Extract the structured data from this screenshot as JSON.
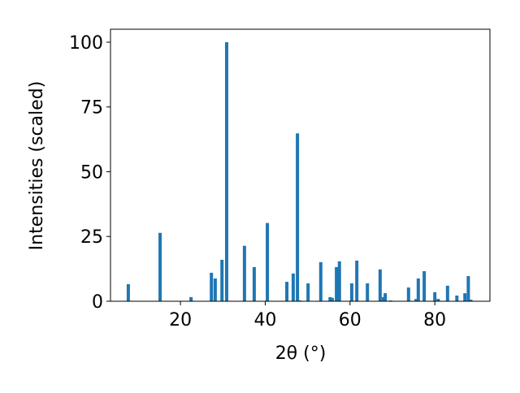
{
  "chart_data": {
    "type": "bar",
    "xlabel": "2θ (°)",
    "ylabel": "Intensities (scaled)",
    "color": "#1f77b4",
    "x": [
      7.7,
      15.2,
      22.5,
      27.3,
      28.2,
      29.8,
      30.9,
      35.1,
      37.4,
      40.5,
      45.1,
      46.6,
      47.6,
      48.2,
      50.1,
      53.1,
      55.3,
      55.8,
      56.8,
      57.5,
      60.4,
      61.6,
      64.1,
      67.1,
      67.9,
      68.3,
      69.6,
      73.8,
      75.6,
      76.1,
      77.5,
      80,
      80.8,
      83,
      85.2,
      87.1,
      87.9,
      88.5
    ],
    "values": [
      6.6,
      26.4,
      1.6,
      11,
      8.8,
      16,
      100,
      21.4,
      13.2,
      30.2,
      7.5,
      10.7,
      64.8,
      0.3,
      6.9,
      15.1,
      1.6,
      1.3,
      13.2,
      15.4,
      6.9,
      15.7,
      6.9,
      12.3,
      1.6,
      3.1,
      0.3,
      5.3,
      0.9,
      8.8,
      11.6,
      3.5,
      0.9,
      6,
      2.2,
      3.1,
      9.7,
      0.6
    ],
    "xlim": [
      3.5,
      93
    ],
    "ylim": [
      0,
      105
    ],
    "xticks": [
      20,
      40,
      60,
      80
    ],
    "yticks": [
      0,
      25,
      50,
      75,
      100
    ]
  }
}
